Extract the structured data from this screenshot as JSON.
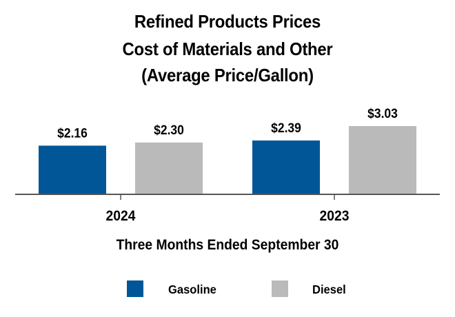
{
  "chart_data": {
    "type": "bar",
    "title_lines": [
      "Refined Products Prices",
      "Cost of Materials and Other",
      "(Average Price/Gallon)"
    ],
    "categories": [
      "2024",
      "2023"
    ],
    "series": [
      {
        "name": "Gasoline",
        "values": [
          2.16,
          2.39
        ],
        "labels": [
          "$2.16",
          "$2.39"
        ]
      },
      {
        "name": "Diesel",
        "values": [
          2.3,
          3.03
        ],
        "labels": [
          "$2.30",
          "$3.03"
        ]
      }
    ],
    "xlabel": "Three Months Ended September 30",
    "ylabel": "",
    "ylim": [
      0,
      3.5
    ],
    "grid": false,
    "legend_position": "bottom",
    "colors": {
      "Gasoline": "#005696",
      "Diesel": "#BABABA",
      "axis": "#555555"
    }
  }
}
